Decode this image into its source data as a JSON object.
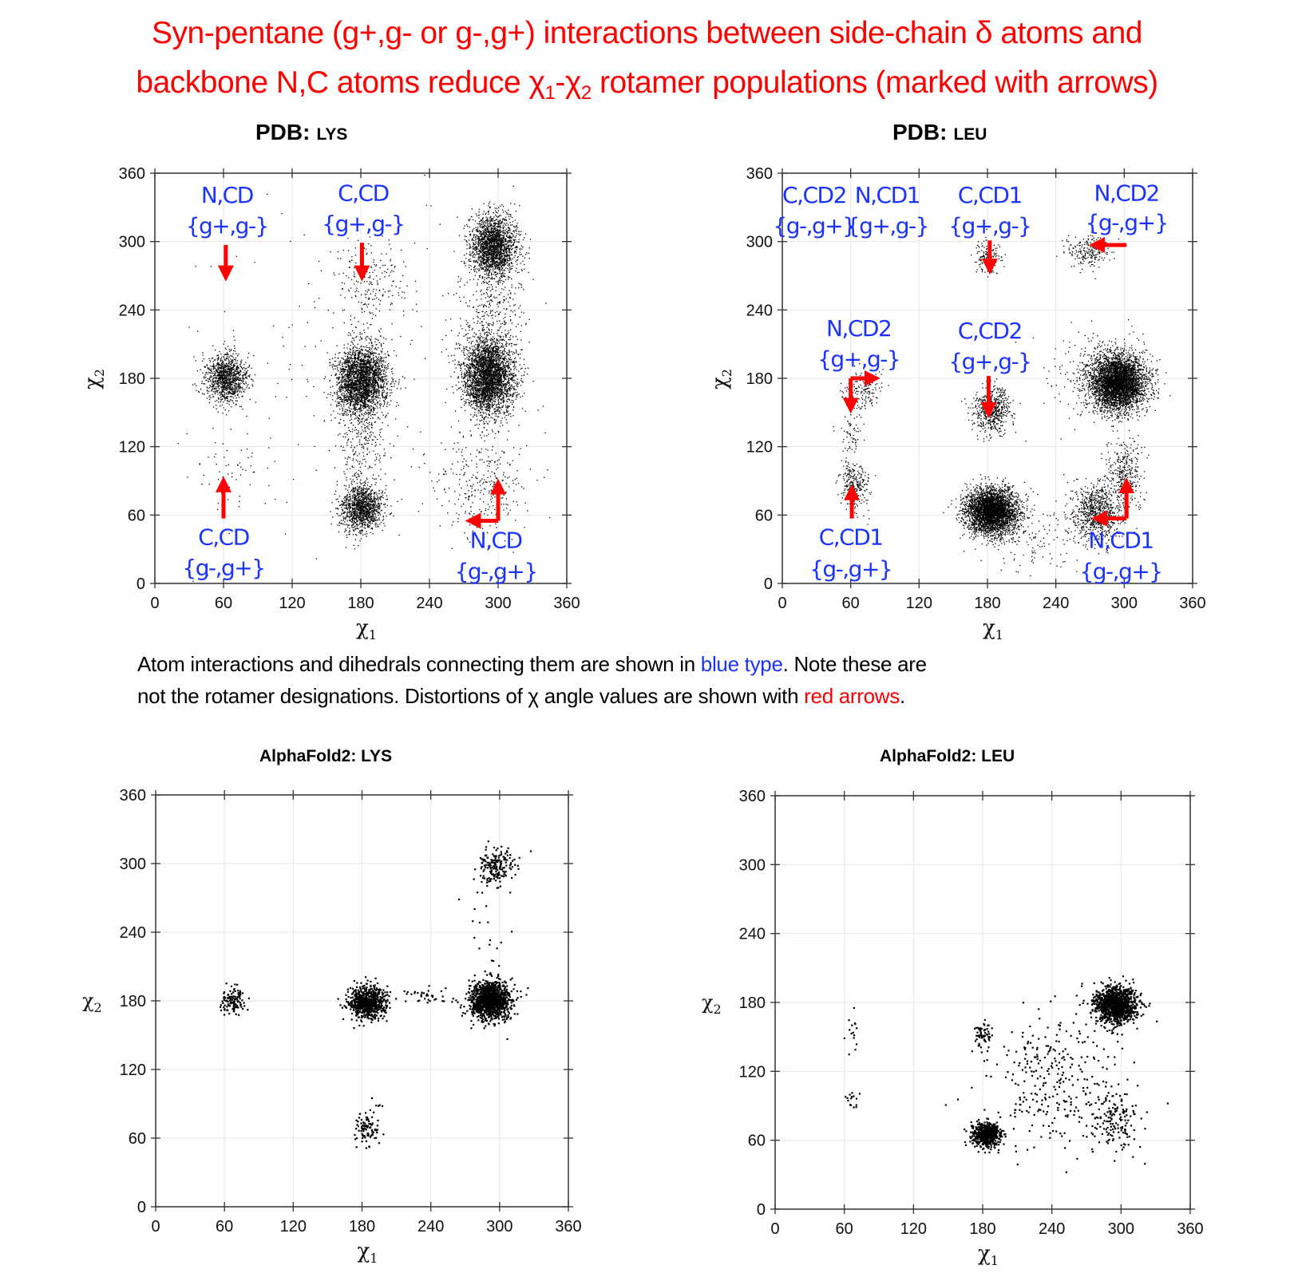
{
  "title": {
    "line1": "Syn-pentane (g+,g- or g-,g+) interactions between side-chain δ atoms and",
    "line2_pre": "backbone N,C atoms reduce ",
    "chi": "χ",
    "sub1": "1",
    "dash": "-",
    "sub2": "2",
    "line2_post": " rotamer populations (marked with arrows)"
  },
  "caption": {
    "line1_pre": "Atom interactions and dihedrals connecting them are shown in ",
    "line1_blue": "blue type",
    "line1_post": ". Note these are",
    "line2_pre": "not the rotamer designations. Distortions of χ angle values are shown with ",
    "line2_red": "red arrows",
    "line2_post": "."
  },
  "colors": {
    "title": "#ff0000",
    "annotation": "#1a33ff",
    "arrow": "#ff0000",
    "points": "#000000",
    "grid": "#e6e6e6"
  },
  "chart_data": [
    {
      "type": "scatter",
      "title_prefix": "PDB:",
      "title": "LYS",
      "xlabel": "χ",
      "xlabel_sub": "1",
      "ylabel": "χ",
      "ylabel_sub": "2",
      "xlim": [
        0,
        360
      ],
      "ylim": [
        0,
        360
      ],
      "ticks": [
        0,
        60,
        120,
        180,
        240,
        300,
        360
      ],
      "grid": true,
      "point_size": 1.3,
      "clusters": [
        {
          "x": 62,
          "y": 180,
          "sx": 9,
          "sy": 11,
          "n": 1100
        },
        {
          "x": 181,
          "y": 178,
          "sx": 11,
          "sy": 15,
          "n": 2600
        },
        {
          "x": 292,
          "y": 182,
          "sx": 11,
          "sy": 17,
          "n": 3200
        },
        {
          "x": 296,
          "y": 296,
          "sx": 10,
          "sy": 14,
          "n": 2000
        },
        {
          "x": 181,
          "y": 66,
          "sx": 9,
          "sy": 10,
          "n": 1200
        },
        {
          "x": 185,
          "y": 265,
          "sx": 16,
          "sy": 20,
          "n": 200
        },
        {
          "x": 285,
          "y": 85,
          "sx": 20,
          "sy": 22,
          "n": 300
        },
        {
          "x": 180,
          "y": 120,
          "sx": 12,
          "sy": 25,
          "n": 250
        },
        {
          "x": 295,
          "y": 240,
          "sx": 14,
          "sy": 20,
          "n": 250
        },
        {
          "x": 65,
          "y": 100,
          "sx": 15,
          "sy": 20,
          "n": 50
        },
        {
          "x": 180,
          "y": 180,
          "sx": 90,
          "sy": 90,
          "n": 250
        }
      ],
      "annotations": [
        {
          "text": "N,CD",
          "x": 63,
          "y": 341
        },
        {
          "text": "{g+,g-}",
          "x": 63,
          "y": 314
        },
        {
          "text": "C,CD",
          "x": 182,
          "y": 343
        },
        {
          "text": "{g+,g-}",
          "x": 182,
          "y": 316
        },
        {
          "text": "C,CD",
          "x": 60,
          "y": 41
        },
        {
          "text": "{g-,g+}",
          "x": 60,
          "y": 14
        },
        {
          "text": "N,CD",
          "x": 298,
          "y": 38
        },
        {
          "text": "{g-,g+}",
          "x": 298,
          "y": 11
        }
      ],
      "arrows": [
        {
          "from": [
            62,
            297
          ],
          "to": [
            62,
            272
          ]
        },
        {
          "from": [
            181,
            299
          ],
          "to": [
            181,
            272
          ]
        },
        {
          "from": [
            60,
            57
          ],
          "to": [
            60,
            87
          ]
        },
        {
          "from": [
            300,
            55
          ],
          "to": [
            300,
            85
          ]
        },
        {
          "from": [
            300,
            55
          ],
          "to": [
            278,
            55
          ]
        }
      ]
    },
    {
      "type": "scatter",
      "title_prefix": "PDB:",
      "title": "LEU",
      "xlabel": "χ",
      "xlabel_sub": "1",
      "ylabel": "χ",
      "ylabel_sub": "2",
      "xlim": [
        0,
        360
      ],
      "ylim": [
        0,
        360
      ],
      "ticks": [
        0,
        60,
        120,
        180,
        240,
        300,
        360
      ],
      "grid": true,
      "point_size": 1.3,
      "clusters": [
        {
          "x": 295,
          "y": 176,
          "sx": 12,
          "sy": 12,
          "n": 4000
        },
        {
          "x": 184,
          "y": 63,
          "sx": 11,
          "sy": 10,
          "n": 3600
        },
        {
          "x": 184,
          "y": 152,
          "sx": 8,
          "sy": 10,
          "n": 600
        },
        {
          "x": 181,
          "y": 286,
          "sx": 6,
          "sy": 7,
          "n": 180
        },
        {
          "x": 270,
          "y": 292,
          "sx": 10,
          "sy": 7,
          "n": 220
        },
        {
          "x": 64,
          "y": 85,
          "sx": 6,
          "sy": 10,
          "n": 260
        },
        {
          "x": 72,
          "y": 170,
          "sx": 8,
          "sy": 8,
          "n": 160
        },
        {
          "x": 275,
          "y": 62,
          "sx": 11,
          "sy": 12,
          "n": 800
        },
        {
          "x": 300,
          "y": 95,
          "sx": 8,
          "sy": 15,
          "n": 350
        },
        {
          "x": 60,
          "y": 125,
          "sx": 5,
          "sy": 20,
          "n": 80
        },
        {
          "x": 220,
          "y": 40,
          "sx": 25,
          "sy": 15,
          "n": 150
        },
        {
          "x": 275,
          "y": 185,
          "sx": 20,
          "sy": 18,
          "n": 250
        }
      ],
      "annotations": [
        {
          "text": "C,CD2",
          "x": 28,
          "y": 341
        },
        {
          "text": "{g-,g+}",
          "x": 28,
          "y": 314
        },
        {
          "text": "N,CD1",
          "x": 92,
          "y": 341
        },
        {
          "text": "{g+,g-}",
          "x": 92,
          "y": 314
        },
        {
          "text": "C,CD1",
          "x": 182,
          "y": 341
        },
        {
          "text": "{g+,g-}",
          "x": 182,
          "y": 314
        },
        {
          "text": "N,CD2",
          "x": 302,
          "y": 343
        },
        {
          "text": "{g-,g+}",
          "x": 302,
          "y": 317
        },
        {
          "text": "N,CD2",
          "x": 67,
          "y": 224
        },
        {
          "text": "{g+,g-}",
          "x": 67,
          "y": 197
        },
        {
          "text": "C,CD2",
          "x": 182,
          "y": 222
        },
        {
          "text": "{g+,g-}",
          "x": 182,
          "y": 195
        },
        {
          "text": "C,CD1",
          "x": 60,
          "y": 41
        },
        {
          "text": "{g-,g+}",
          "x": 60,
          "y": 13
        },
        {
          "text": "N,CD1",
          "x": 297,
          "y": 38
        },
        {
          "text": "{g-,g+}",
          "x": 297,
          "y": 11
        }
      ],
      "arrows": [
        {
          "from": [
            182,
            301
          ],
          "to": [
            182,
            278
          ]
        },
        {
          "from": [
            302,
            297
          ],
          "to": [
            276,
            297
          ]
        },
        {
          "from": [
            60,
            180
          ],
          "to": [
            60,
            156
          ]
        },
        {
          "from": [
            60,
            180
          ],
          "to": [
            79,
            180
          ]
        },
        {
          "from": [
            181,
            182
          ],
          "to": [
            181,
            152
          ]
        },
        {
          "from": [
            61,
            57
          ],
          "to": [
            61,
            80
          ]
        },
        {
          "from": [
            302,
            57
          ],
          "to": [
            302,
            86
          ]
        },
        {
          "from": [
            302,
            57
          ],
          "to": [
            278,
            57
          ]
        }
      ]
    },
    {
      "type": "scatter",
      "title": "AlphaFold2: LYS",
      "xlabel": "χ",
      "xlabel_sub": "1",
      "ylabel": "χ",
      "ylabel_sub": "2",
      "xlim": [
        0,
        360
      ],
      "ylim": [
        0,
        360
      ],
      "ticks": [
        0,
        60,
        120,
        180,
        240,
        300,
        360
      ],
      "grid": true,
      "point_size": 2.2,
      "clusters": [
        {
          "x": 68,
          "y": 180,
          "sx": 5,
          "sy": 6,
          "n": 120
        },
        {
          "x": 185,
          "y": 178,
          "sx": 8,
          "sy": 7,
          "n": 700
        },
        {
          "x": 292,
          "y": 180,
          "sx": 9,
          "sy": 8,
          "n": 1200
        },
        {
          "x": 298,
          "y": 297,
          "sx": 8,
          "sy": 9,
          "n": 180
        },
        {
          "x": 186,
          "y": 68,
          "sx": 6,
          "sy": 8,
          "n": 100
        },
        {
          "x": 235,
          "y": 184,
          "sx": 15,
          "sy": 3,
          "n": 40
        },
        {
          "x": 290,
          "y": 250,
          "sx": 15,
          "sy": 25,
          "n": 20
        }
      ],
      "annotations": [],
      "arrows": []
    },
    {
      "type": "scatter",
      "title": "AlphaFold2: LEU",
      "xlabel": "χ",
      "xlabel_sub": "1",
      "ylabel": "χ",
      "ylabel_sub": "2",
      "xlim": [
        0,
        360
      ],
      "ylim": [
        0,
        360
      ],
      "ticks": [
        0,
        60,
        120,
        180,
        240,
        300,
        360
      ],
      "grid": true,
      "point_size": 2.2,
      "clusters": [
        {
          "x": 295,
          "y": 178,
          "sx": 9,
          "sy": 8,
          "n": 1200
        },
        {
          "x": 183,
          "y": 65,
          "sx": 6,
          "sy": 5,
          "n": 600
        },
        {
          "x": 180,
          "y": 152,
          "sx": 4,
          "sy": 6,
          "n": 60
        },
        {
          "x": 67,
          "y": 150,
          "sx": 3,
          "sy": 10,
          "n": 15
        },
        {
          "x": 67,
          "y": 95,
          "sx": 3,
          "sy": 5,
          "n": 15
        },
        {
          "x": 240,
          "y": 110,
          "sx": 30,
          "sy": 30,
          "n": 300
        },
        {
          "x": 295,
          "y": 80,
          "sx": 10,
          "sy": 15,
          "n": 150
        }
      ],
      "annotations": [],
      "arrows": []
    }
  ]
}
